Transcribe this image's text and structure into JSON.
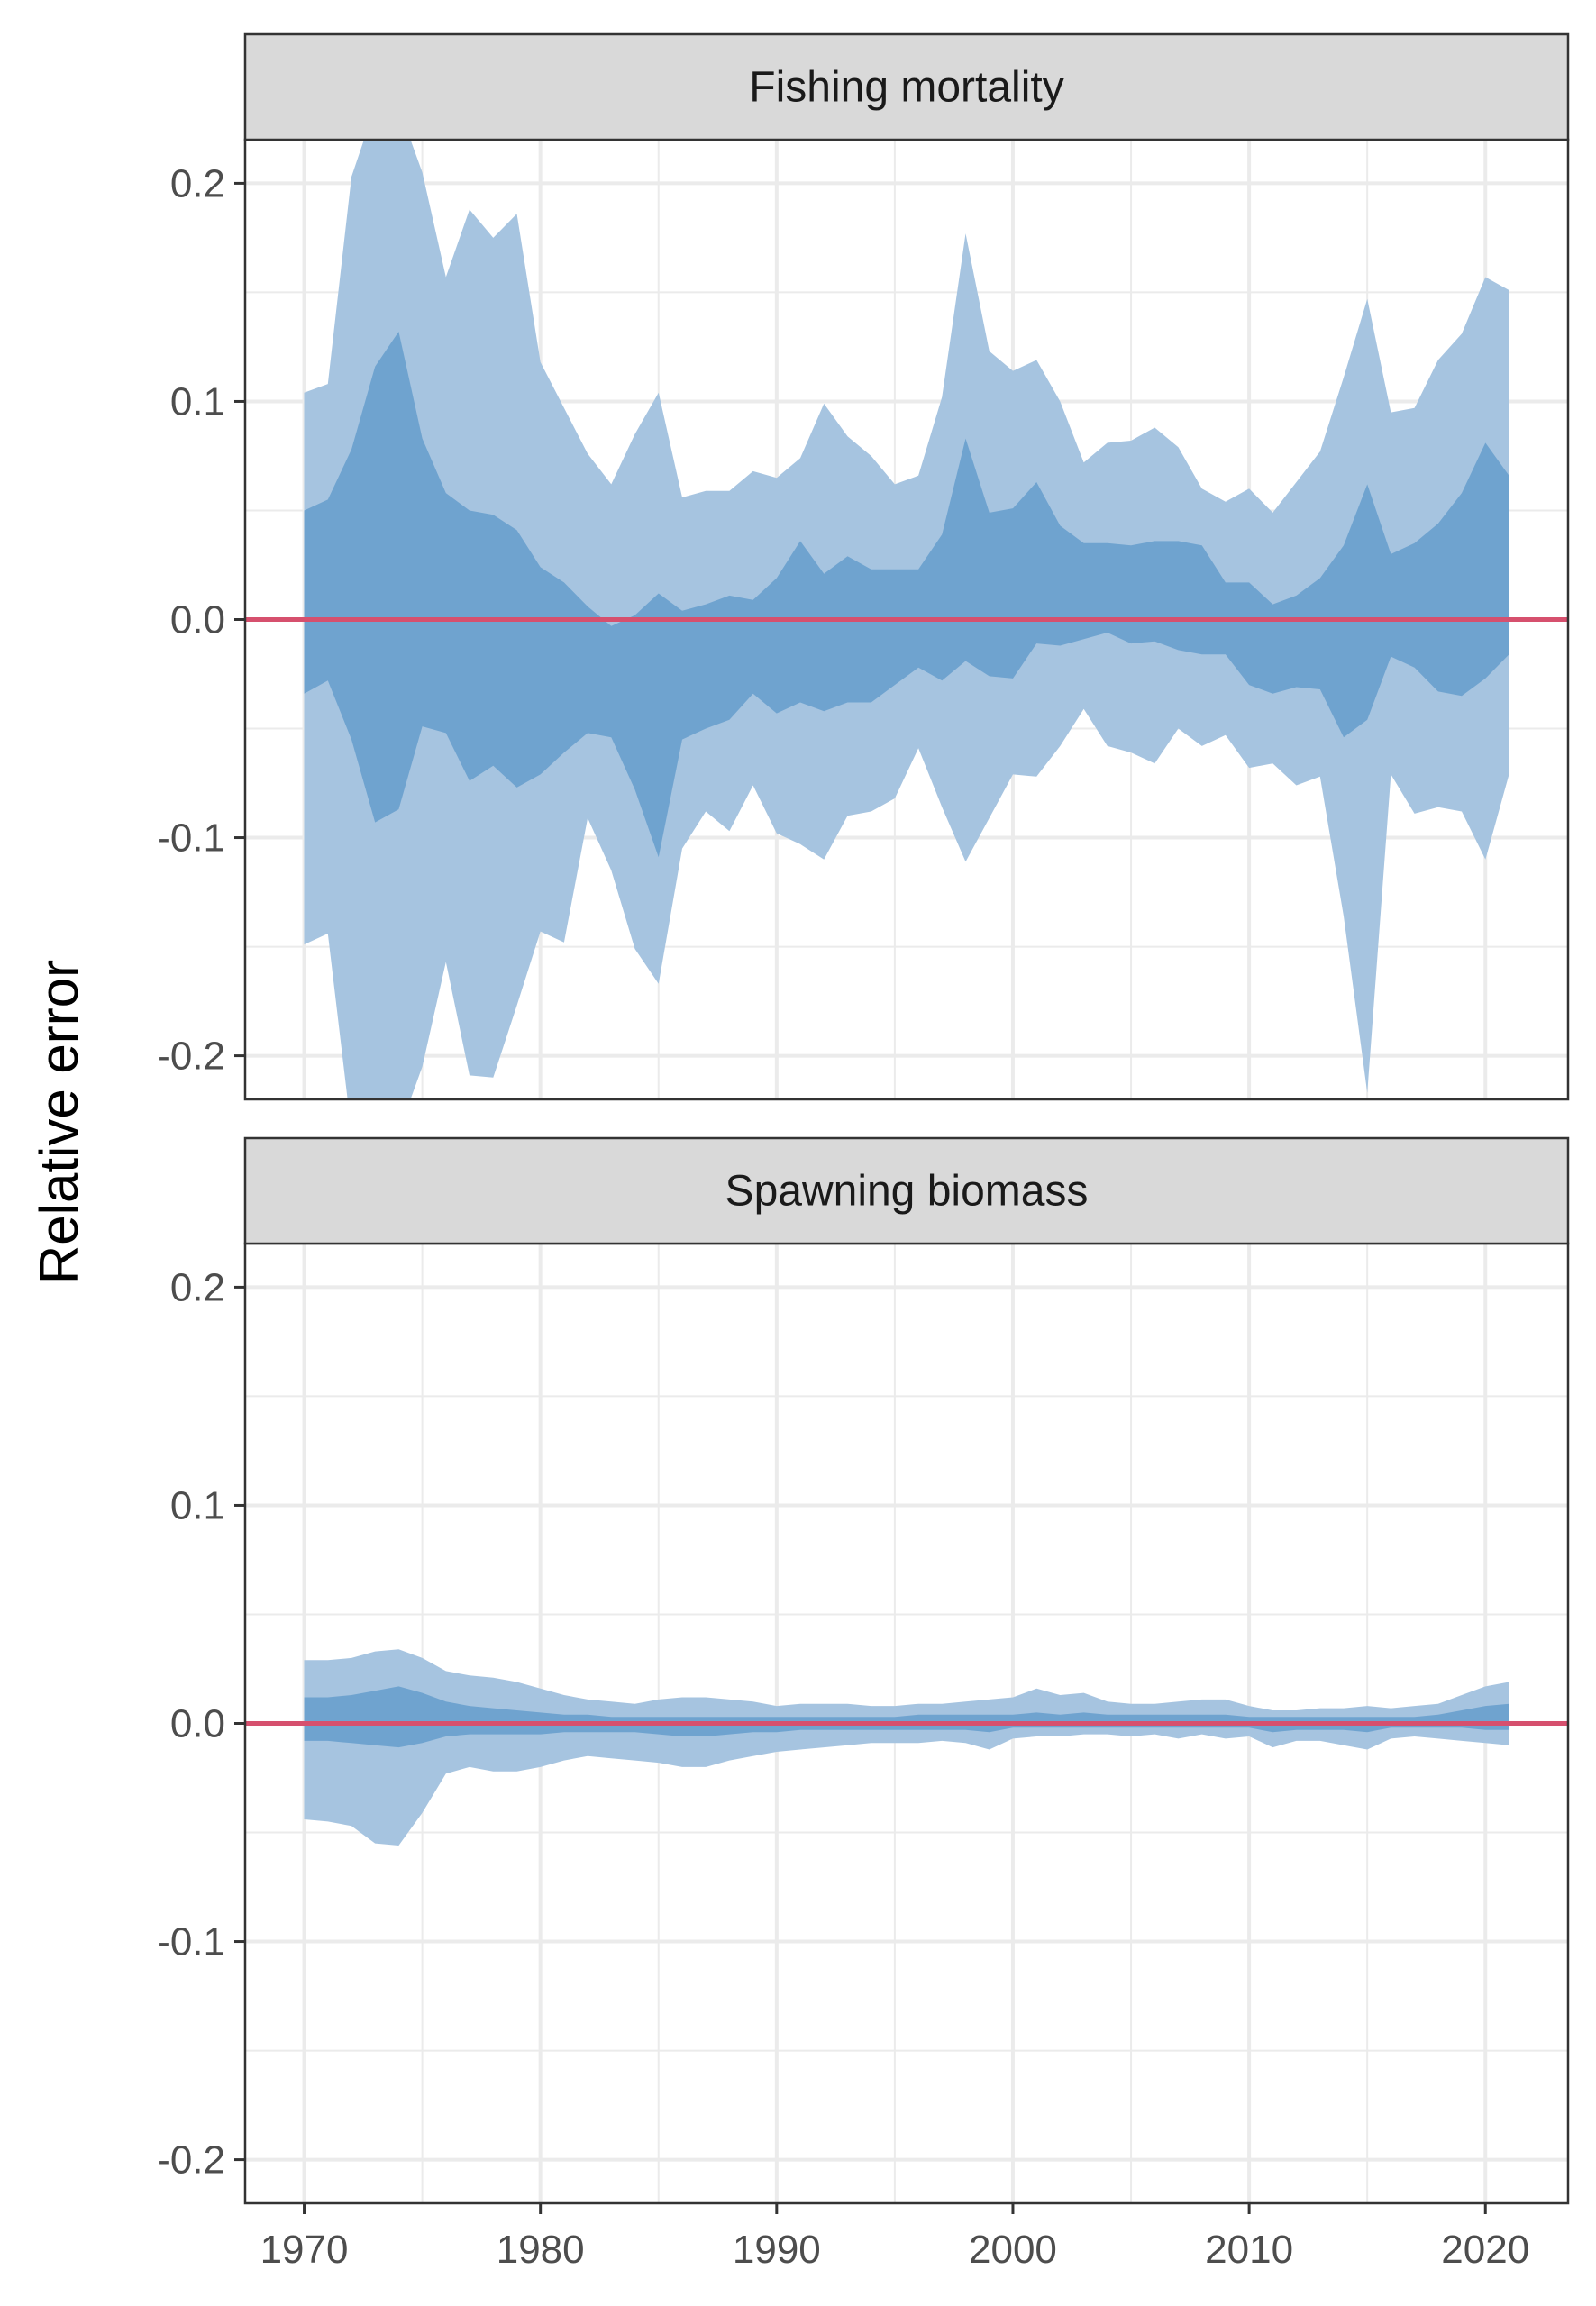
{
  "ylabel": "Relative error",
  "colors": {
    "outer_band": "#a6c4e0",
    "inner_band": "#6fa3cf",
    "reference_line": "#d6506e",
    "strip_bg": "#d9d9d9",
    "grid": "#ebebeb"
  },
  "chart_data": [
    {
      "type": "area",
      "title": "Fishing mortality",
      "xlabel": "",
      "ylabel": "Relative error",
      "xlim": [
        1967.5,
        2023.5
      ],
      "ylim": [
        -0.22,
        0.22
      ],
      "x_ticks": [
        1970,
        1980,
        1990,
        2000,
        2010,
        2020
      ],
      "y_ticks": [
        -0.2,
        -0.1,
        0.0,
        0.1,
        0.2
      ],
      "y_tick_labels": [
        "-0.2",
        "-0.1",
        "0.0",
        "0.1",
        "0.2"
      ],
      "grid": true,
      "reference_line": 0,
      "years": [
        1970,
        1971,
        1972,
        1973,
        1974,
        1975,
        1976,
        1977,
        1978,
        1979,
        1980,
        1981,
        1982,
        1983,
        1984,
        1985,
        1986,
        1987,
        1988,
        1989,
        1990,
        1991,
        1992,
        1993,
        1994,
        1995,
        1996,
        1997,
        1998,
        1999,
        2000,
        2001,
        2002,
        2003,
        2004,
        2005,
        2006,
        2007,
        2008,
        2009,
        2010,
        2011,
        2012,
        2013,
        2014,
        2015,
        2016,
        2017,
        2018,
        2019,
        2020,
        2021
      ],
      "bands": {
        "outer_upper": [
          0.104,
          0.108,
          0.203,
          0.235,
          0.235,
          0.205,
          0.157,
          0.188,
          0.175,
          0.186,
          0.118,
          0.097,
          0.076,
          0.062,
          0.085,
          0.104,
          0.056,
          0.059,
          0.059,
          0.068,
          0.065,
          0.074,
          0.099,
          0.084,
          0.075,
          0.062,
          0.066,
          0.102,
          0.177,
          0.123,
          0.114,
          0.119,
          0.1,
          0.072,
          0.081,
          0.082,
          0.088,
          0.079,
          0.06,
          0.054,
          0.06,
          0.049,
          0.063,
          0.077,
          0.111,
          0.147,
          0.095,
          0.097,
          0.119,
          0.131,
          0.157,
          0.151
        ],
        "outer_lower": [
          -0.149,
          -0.144,
          -0.235,
          -0.235,
          -0.235,
          -0.205,
          -0.157,
          -0.209,
          -0.21,
          -0.177,
          -0.143,
          -0.148,
          -0.091,
          -0.115,
          -0.151,
          -0.167,
          -0.105,
          -0.088,
          -0.097,
          -0.076,
          -0.098,
          -0.103,
          -0.11,
          -0.09,
          -0.088,
          -0.082,
          -0.059,
          -0.086,
          -0.111,
          -0.091,
          -0.071,
          -0.072,
          -0.058,
          -0.041,
          -0.058,
          -0.061,
          -0.066,
          -0.05,
          -0.058,
          -0.053,
          -0.068,
          -0.066,
          -0.076,
          -0.072,
          -0.136,
          -0.217,
          -0.071,
          -0.089,
          -0.086,
          -0.088,
          -0.11,
          -0.071
        ],
        "inner_upper": [
          0.05,
          0.055,
          0.078,
          0.116,
          0.132,
          0.083,
          0.058,
          0.05,
          0.048,
          0.041,
          0.024,
          0.017,
          0.006,
          -0.003,
          0.002,
          0.012,
          0.004,
          0.007,
          0.011,
          0.009,
          0.019,
          0.036,
          0.021,
          0.029,
          0.023,
          0.023,
          0.023,
          0.039,
          0.083,
          0.049,
          0.051,
          0.063,
          0.043,
          0.035,
          0.035,
          0.034,
          0.036,
          0.036,
          0.034,
          0.017,
          0.017,
          0.007,
          0.011,
          0.019,
          0.034,
          0.062,
          0.03,
          0.035,
          0.044,
          0.058,
          0.081,
          0.066
        ],
        "inner_lower": [
          -0.034,
          -0.028,
          -0.055,
          -0.093,
          -0.087,
          -0.049,
          -0.052,
          -0.074,
          -0.067,
          -0.077,
          -0.071,
          -0.061,
          -0.052,
          -0.054,
          -0.078,
          -0.109,
          -0.055,
          -0.05,
          -0.046,
          -0.034,
          -0.043,
          -0.038,
          -0.042,
          -0.038,
          -0.038,
          -0.03,
          -0.022,
          -0.028,
          -0.019,
          -0.026,
          -0.027,
          -0.011,
          -0.012,
          -0.009,
          -0.006,
          -0.011,
          -0.01,
          -0.014,
          -0.016,
          -0.016,
          -0.03,
          -0.034,
          -0.031,
          -0.032,
          -0.054,
          -0.046,
          -0.017,
          -0.022,
          -0.033,
          -0.035,
          -0.027,
          -0.016
        ]
      }
    },
    {
      "type": "area",
      "title": "Spawning biomass",
      "xlabel": "",
      "ylabel": "Relative error",
      "xlim": [
        1967.5,
        2023.5
      ],
      "ylim": [
        -0.22,
        0.22
      ],
      "x_ticks": [
        1970,
        1980,
        1990,
        2000,
        2010,
        2020
      ],
      "x_tick_labels": [
        "1970",
        "1980",
        "1990",
        "2000",
        "2010",
        "2020"
      ],
      "y_ticks": [
        -0.2,
        -0.1,
        0.0,
        0.1,
        0.2
      ],
      "y_tick_labels": [
        "-0.2",
        "-0.1",
        "0.0",
        "0.1",
        "0.2"
      ],
      "grid": true,
      "reference_line": 0,
      "years": [
        1970,
        1971,
        1972,
        1973,
        1974,
        1975,
        1976,
        1977,
        1978,
        1979,
        1980,
        1981,
        1982,
        1983,
        1984,
        1985,
        1986,
        1987,
        1988,
        1989,
        1990,
        1991,
        1992,
        1993,
        1994,
        1995,
        1996,
        1997,
        1998,
        1999,
        2000,
        2001,
        2002,
        2003,
        2004,
        2005,
        2006,
        2007,
        2008,
        2009,
        2010,
        2011,
        2012,
        2013,
        2014,
        2015,
        2016,
        2017,
        2018,
        2019,
        2020,
        2021
      ],
      "bands": {
        "outer_upper": [
          0.029,
          0.029,
          0.03,
          0.033,
          0.034,
          0.03,
          0.024,
          0.022,
          0.021,
          0.019,
          0.016,
          0.013,
          0.011,
          0.01,
          0.009,
          0.011,
          0.012,
          0.012,
          0.011,
          0.01,
          0.008,
          0.009,
          0.009,
          0.009,
          0.008,
          0.008,
          0.009,
          0.009,
          0.01,
          0.011,
          0.012,
          0.016,
          0.013,
          0.014,
          0.01,
          0.009,
          0.009,
          0.01,
          0.011,
          0.011,
          0.008,
          0.006,
          0.006,
          0.007,
          0.007,
          0.008,
          0.007,
          0.008,
          0.009,
          0.013,
          0.017,
          0.019
        ],
        "outer_lower": [
          -0.044,
          -0.045,
          -0.047,
          -0.055,
          -0.056,
          -0.041,
          -0.023,
          -0.02,
          -0.022,
          -0.022,
          -0.02,
          -0.017,
          -0.015,
          -0.016,
          -0.017,
          -0.018,
          -0.02,
          -0.02,
          -0.017,
          -0.015,
          -0.013,
          -0.012,
          -0.011,
          -0.01,
          -0.009,
          -0.009,
          -0.009,
          -0.008,
          -0.009,
          -0.012,
          -0.007,
          -0.006,
          -0.006,
          -0.005,
          -0.005,
          -0.006,
          -0.005,
          -0.007,
          -0.005,
          -0.007,
          -0.006,
          -0.011,
          -0.008,
          -0.008,
          -0.01,
          -0.012,
          -0.007,
          -0.006,
          -0.007,
          -0.008,
          -0.009,
          -0.01
        ],
        "inner_upper": [
          0.012,
          0.012,
          0.013,
          0.015,
          0.017,
          0.014,
          0.01,
          0.008,
          0.007,
          0.006,
          0.005,
          0.004,
          0.004,
          0.003,
          0.003,
          0.003,
          0.003,
          0.003,
          0.003,
          0.003,
          0.003,
          0.003,
          0.003,
          0.003,
          0.003,
          0.003,
          0.004,
          0.004,
          0.004,
          0.004,
          0.004,
          0.005,
          0.004,
          0.005,
          0.004,
          0.004,
          0.004,
          0.004,
          0.004,
          0.004,
          0.003,
          0.003,
          0.003,
          0.003,
          0.003,
          0.003,
          0.003,
          0.003,
          0.004,
          0.006,
          0.008,
          0.009
        ],
        "inner_lower": [
          -0.008,
          -0.008,
          -0.009,
          -0.01,
          -0.011,
          -0.009,
          -0.006,
          -0.005,
          -0.005,
          -0.005,
          -0.005,
          -0.004,
          -0.004,
          -0.004,
          -0.004,
          -0.005,
          -0.006,
          -0.006,
          -0.005,
          -0.004,
          -0.004,
          -0.003,
          -0.003,
          -0.003,
          -0.003,
          -0.003,
          -0.003,
          -0.003,
          -0.003,
          -0.004,
          -0.002,
          -0.002,
          -0.002,
          -0.002,
          -0.002,
          -0.002,
          -0.002,
          -0.002,
          -0.002,
          -0.002,
          -0.002,
          -0.004,
          -0.003,
          -0.003,
          -0.003,
          -0.004,
          -0.002,
          -0.002,
          -0.002,
          -0.002,
          -0.003,
          -0.003
        ]
      }
    }
  ]
}
